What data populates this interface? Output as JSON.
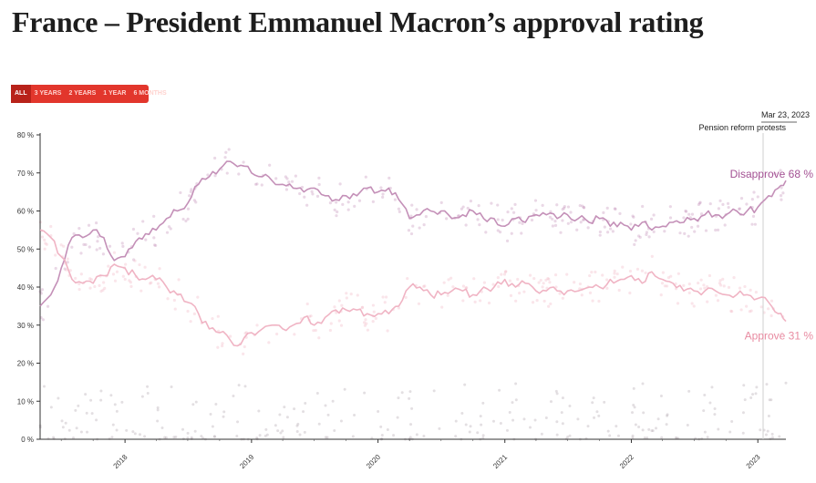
{
  "page": {
    "title": "France – President Emmanuel Macron’s approval rating"
  },
  "range_tabs": [
    {
      "label": "ALL",
      "active": true
    },
    {
      "label": "3 YEARS",
      "active": false
    },
    {
      "label": "2 YEARS",
      "active": false
    },
    {
      "label": "1 YEAR",
      "active": false
    },
    {
      "label": "6 MONTHS",
      "active": false
    }
  ],
  "colors": {
    "disapprove": "#c490b8",
    "approve": "#f0b4c4",
    "disapprove_text": "#a35193",
    "approve_text": "#e88ba1",
    "tab_bg": "#e2362c",
    "tab_active": "#b8221a"
  },
  "chart_data": {
    "type": "line",
    "x_start": "2017-05-01",
    "x_end": "2023-03-23",
    "xticks": [
      "2018",
      "2019",
      "2020",
      "2021",
      "2022",
      "2023"
    ],
    "ylim": [
      0,
      80
    ],
    "yticks": [
      "0 %",
      "10 %",
      "20 %",
      "30 %",
      "40 %",
      "50 %",
      "60 %",
      "70 %",
      "80 %"
    ],
    "series": [
      {
        "name": "Disapprove",
        "end_label": "68 %",
        "color": "#c490b8",
        "points": [
          [
            "2017-05-01",
            35
          ],
          [
            "2017-06-01",
            38
          ],
          [
            "2017-07-01",
            45
          ],
          [
            "2017-08-01",
            53
          ],
          [
            "2017-09-01",
            53
          ],
          [
            "2017-10-01",
            55
          ],
          [
            "2017-11-01",
            53
          ],
          [
            "2017-12-01",
            47
          ],
          [
            "2018-01-01",
            48
          ],
          [
            "2018-02-01",
            52
          ],
          [
            "2018-03-01",
            54
          ],
          [
            "2018-04-01",
            55
          ],
          [
            "2018-05-01",
            58
          ],
          [
            "2018-06-01",
            60
          ],
          [
            "2018-07-01",
            62
          ],
          [
            "2018-08-01",
            67
          ],
          [
            "2018-09-01",
            69
          ],
          [
            "2018-10-01",
            71
          ],
          [
            "2018-11-01",
            73
          ],
          [
            "2018-12-01",
            72
          ],
          [
            "2019-01-01",
            70
          ],
          [
            "2019-02-01",
            69
          ],
          [
            "2019-03-01",
            68
          ],
          [
            "2019-04-01",
            67
          ],
          [
            "2019-05-01",
            66
          ],
          [
            "2019-06-01",
            65
          ],
          [
            "2019-07-01",
            66
          ],
          [
            "2019-08-01",
            64
          ],
          [
            "2019-09-01",
            63
          ],
          [
            "2019-10-01",
            64
          ],
          [
            "2019-11-01",
            64
          ],
          [
            "2019-12-01",
            66
          ],
          [
            "2020-01-01",
            65
          ],
          [
            "2020-02-01",
            66
          ],
          [
            "2020-03-01",
            63
          ],
          [
            "2020-04-01",
            58
          ],
          [
            "2020-05-01",
            59
          ],
          [
            "2020-06-01",
            60
          ],
          [
            "2020-07-01",
            60
          ],
          [
            "2020-08-01",
            58
          ],
          [
            "2020-09-01",
            59
          ],
          [
            "2020-10-01",
            60
          ],
          [
            "2020-11-01",
            58
          ],
          [
            "2020-12-01",
            58
          ],
          [
            "2021-01-01",
            56
          ],
          [
            "2021-02-01",
            58
          ],
          [
            "2021-03-01",
            57
          ],
          [
            "2021-04-01",
            59
          ],
          [
            "2021-05-01",
            59
          ],
          [
            "2021-06-01",
            58
          ],
          [
            "2021-07-01",
            59
          ],
          [
            "2021-08-01",
            58
          ],
          [
            "2021-09-01",
            57
          ],
          [
            "2021-10-01",
            58
          ],
          [
            "2021-11-01",
            56
          ],
          [
            "2021-12-01",
            57
          ],
          [
            "2022-01-01",
            55
          ],
          [
            "2022-02-01",
            57
          ],
          [
            "2022-03-01",
            55
          ],
          [
            "2022-04-01",
            56
          ],
          [
            "2022-05-01",
            57
          ],
          [
            "2022-06-01",
            57
          ],
          [
            "2022-07-01",
            58
          ],
          [
            "2022-08-01",
            59
          ],
          [
            "2022-09-01",
            59
          ],
          [
            "2022-10-01",
            59
          ],
          [
            "2022-11-01",
            60
          ],
          [
            "2022-12-01",
            60
          ],
          [
            "2023-01-01",
            61
          ],
          [
            "2023-02-01",
            64
          ],
          [
            "2023-03-01",
            66
          ],
          [
            "2023-03-23",
            68
          ]
        ]
      },
      {
        "name": "Approve",
        "end_label": "31 %",
        "color": "#f0b4c4",
        "points": [
          [
            "2017-05-01",
            55
          ],
          [
            "2017-06-01",
            53
          ],
          [
            "2017-07-01",
            48
          ],
          [
            "2017-08-01",
            42
          ],
          [
            "2017-09-01",
            41
          ],
          [
            "2017-10-01",
            41
          ],
          [
            "2017-11-01",
            43
          ],
          [
            "2017-12-01",
            46
          ],
          [
            "2018-01-01",
            45
          ],
          [
            "2018-02-01",
            43
          ],
          [
            "2018-03-01",
            42
          ],
          [
            "2018-04-01",
            42
          ],
          [
            "2018-05-01",
            40
          ],
          [
            "2018-06-01",
            38
          ],
          [
            "2018-07-01",
            36
          ],
          [
            "2018-08-01",
            33
          ],
          [
            "2018-09-01",
            29
          ],
          [
            "2018-10-01",
            28
          ],
          [
            "2018-11-01",
            26
          ],
          [
            "2018-12-01",
            25
          ],
          [
            "2019-01-01",
            28
          ],
          [
            "2019-02-01",
            29
          ],
          [
            "2019-03-01",
            30
          ],
          [
            "2019-04-01",
            29
          ],
          [
            "2019-05-01",
            30
          ],
          [
            "2019-06-01",
            32
          ],
          [
            "2019-07-01",
            30
          ],
          [
            "2019-08-01",
            32
          ],
          [
            "2019-09-01",
            34
          ],
          [
            "2019-10-01",
            34
          ],
          [
            "2019-11-01",
            34
          ],
          [
            "2019-12-01",
            33
          ],
          [
            "2020-01-01",
            33
          ],
          [
            "2020-02-01",
            33
          ],
          [
            "2020-03-01",
            35
          ],
          [
            "2020-04-01",
            40
          ],
          [
            "2020-05-01",
            40
          ],
          [
            "2020-06-01",
            38
          ],
          [
            "2020-07-01",
            38
          ],
          [
            "2020-08-01",
            39
          ],
          [
            "2020-09-01",
            39
          ],
          [
            "2020-10-01",
            38
          ],
          [
            "2020-11-01",
            40
          ],
          [
            "2020-12-01",
            40
          ],
          [
            "2021-01-01",
            42
          ],
          [
            "2021-02-01",
            40
          ],
          [
            "2021-03-01",
            41
          ],
          [
            "2021-04-01",
            39
          ],
          [
            "2021-05-01",
            39
          ],
          [
            "2021-06-01",
            39
          ],
          [
            "2021-07-01",
            39
          ],
          [
            "2021-08-01",
            39
          ],
          [
            "2021-09-01",
            40
          ],
          [
            "2021-10-01",
            40
          ],
          [
            "2021-11-01",
            42
          ],
          [
            "2021-12-01",
            42
          ],
          [
            "2022-01-01",
            43
          ],
          [
            "2022-02-01",
            41
          ],
          [
            "2022-03-01",
            44
          ],
          [
            "2022-04-01",
            42
          ],
          [
            "2022-05-01",
            41
          ],
          [
            "2022-06-01",
            39
          ],
          [
            "2022-07-01",
            39
          ],
          [
            "2022-08-01",
            39
          ],
          [
            "2022-09-01",
            39
          ],
          [
            "2022-10-01",
            38
          ],
          [
            "2022-11-01",
            38
          ],
          [
            "2022-12-01",
            38
          ],
          [
            "2023-01-01",
            37
          ],
          [
            "2023-02-01",
            36
          ],
          [
            "2023-03-01",
            33
          ],
          [
            "2023-03-23",
            31
          ]
        ]
      }
    ],
    "annotation": {
      "date_label": "Mar 23, 2023",
      "event_label": "Pension reform protests",
      "date": "2023-03-23"
    },
    "grid": false
  }
}
